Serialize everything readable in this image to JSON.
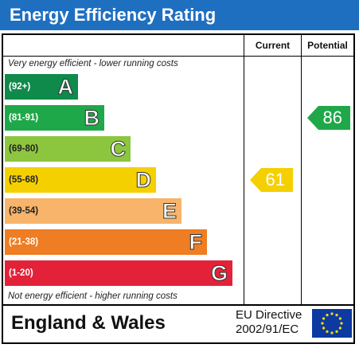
{
  "title": "Energy Efficiency Rating",
  "columns": {
    "current": "Current",
    "potential": "Potential"
  },
  "top_caption": "Very energy efficient - lower running costs",
  "bottom_caption": "Not energy efficient - higher running costs",
  "bands": [
    {
      "range": "(92+)",
      "letter": "A",
      "color": "#0f8a4b"
    },
    {
      "range": "(81-91)",
      "letter": "B",
      "color": "#1fa84a"
    },
    {
      "range": "(69-80)",
      "letter": "C",
      "color": "#8cc63f"
    },
    {
      "range": "(55-68)",
      "letter": "D",
      "color": "#f5d000"
    },
    {
      "range": "(39-54)",
      "letter": "E",
      "color": "#f7b46a"
    },
    {
      "range": "(21-38)",
      "letter": "F",
      "color": "#ee7d23"
    },
    {
      "range": "(1-20)",
      "letter": "G",
      "color": "#e3223a"
    }
  ],
  "current": {
    "value": "61",
    "band": "D",
    "color": "#f5d000"
  },
  "potential": {
    "value": "86",
    "band": "B",
    "color": "#1fa84a"
  },
  "footer": {
    "region": "England & Wales",
    "directive_line1": "EU Directive",
    "directive_line2": "2002/91/EC"
  }
}
